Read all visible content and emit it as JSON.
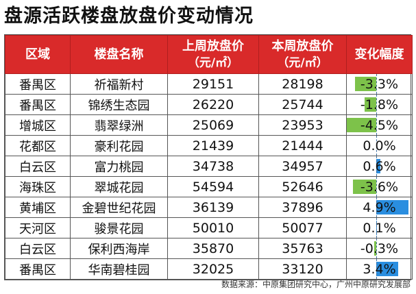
{
  "title": "盘源活跃楼盘放盘价变动情况",
  "headers": {
    "district": "区域",
    "name": "楼盘名称",
    "last_week": "上周放盘价",
    "this_week": "本周放盘价",
    "unit": "（元/㎡）",
    "change": "变化幅度"
  },
  "rows": [
    {
      "district": "番禺区",
      "name": "祈福新村",
      "last": "29151",
      "this": "28198",
      "change": "-3.3%",
      "pct": -3.3
    },
    {
      "district": "番禺区",
      "name": "锦绣生态园",
      "last": "26220",
      "this": "25744",
      "change": "-1.8%",
      "pct": -1.8
    },
    {
      "district": "增城区",
      "name": "翡翠绿洲",
      "last": "25069",
      "this": "23953",
      "change": "-4.5%",
      "pct": -4.5
    },
    {
      "district": "花都区",
      "name": "豪利花园",
      "last": "21439",
      "this": "21444",
      "change": "0.0%",
      "pct": 0.0
    },
    {
      "district": "白云区",
      "name": "富力桃园",
      "last": "34738",
      "this": "34957",
      "change": "0.6%",
      "pct": 0.6
    },
    {
      "district": "海珠区",
      "name": "翠城花园",
      "last": "54594",
      "this": "52646",
      "change": "-3.6%",
      "pct": -3.6
    },
    {
      "district": "黄埔区",
      "name": "金碧世纪花园",
      "last": "36139",
      "this": "37896",
      "change": "4.9%",
      "pct": 4.9
    },
    {
      "district": "天河区",
      "name": "骏景花园",
      "last": "50010",
      "this": "50077",
      "change": "0.1%",
      "pct": 0.1
    },
    {
      "district": "白云区",
      "name": "保利西海岸",
      "last": "35870",
      "this": "35763",
      "change": "-0.3%",
      "pct": -0.3
    },
    {
      "district": "番禺区",
      "name": "华南碧桂园",
      "last": "32025",
      "this": "33120",
      "change": "3.4%",
      "pct": 3.4
    }
  ],
  "source": "数据来源：中原集团研究中心，广州中原研究发展部",
  "colors": {
    "header": "#d92a2a",
    "negative_bar": "#7dc24a",
    "positive_bar": "#2a8ee0"
  }
}
